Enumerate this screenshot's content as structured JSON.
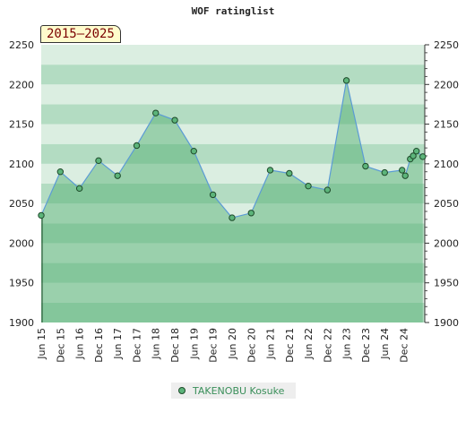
{
  "chart_data": {
    "type": "area",
    "title": "WOF ratinglist",
    "range_label": "2015–2025",
    "ylim": [
      1900,
      2250
    ],
    "yticks": [
      1900,
      1950,
      2000,
      2050,
      2100,
      2150,
      2200,
      2250
    ],
    "xlim": [
      "2015-06-01",
      "2025-06-20"
    ],
    "x_tick_labels": [
      {
        "label": "Jun 15",
        "date": "2015-06-01"
      },
      {
        "label": "Dec 15",
        "date": "2015-12-01"
      },
      {
        "label": "Jun 16",
        "date": "2016-06-01"
      },
      {
        "label": "Dec 16",
        "date": "2016-12-01"
      },
      {
        "label": "Jun 17",
        "date": "2017-06-01"
      },
      {
        "label": "Dec 17",
        "date": "2017-12-01"
      },
      {
        "label": "Jun 18",
        "date": "2018-06-01"
      },
      {
        "label": "Dec 18",
        "date": "2018-12-01"
      },
      {
        "label": "Jun 19",
        "date": "2019-06-01"
      },
      {
        "label": "Dec 19",
        "date": "2019-12-01"
      },
      {
        "label": "Jun 20",
        "date": "2020-06-01"
      },
      {
        "label": "Dec 20",
        "date": "2020-12-01"
      },
      {
        "label": "Jun 21",
        "date": "2021-06-01"
      },
      {
        "label": "Dec 21",
        "date": "2021-12-01"
      },
      {
        "label": "Jun 22",
        "date": "2022-06-01"
      },
      {
        "label": "Dec 22",
        "date": "2022-12-01"
      },
      {
        "label": "Jun 23",
        "date": "2023-06-01"
      },
      {
        "label": "Dec 23",
        "date": "2023-12-01"
      },
      {
        "label": "Jun 24",
        "date": "2024-06-01"
      },
      {
        "label": "Dec 24",
        "date": "2024-12-01"
      }
    ],
    "series": [
      {
        "name": "TAKENOBU Kosuke",
        "color": "#5cb47a",
        "points": [
          {
            "x": "2015-06-01",
            "y": 2035
          },
          {
            "x": "2015-12-01",
            "y": 2090
          },
          {
            "x": "2016-06-01",
            "y": 2069
          },
          {
            "x": "2016-12-01",
            "y": 2104
          },
          {
            "x": "2017-06-01",
            "y": 2085
          },
          {
            "x": "2017-12-01",
            "y": 2123
          },
          {
            "x": "2018-06-01",
            "y": 2164
          },
          {
            "x": "2018-12-01",
            "y": 2155
          },
          {
            "x": "2019-06-01",
            "y": 2116
          },
          {
            "x": "2019-12-01",
            "y": 2061
          },
          {
            "x": "2020-06-01",
            "y": 2032
          },
          {
            "x": "2020-12-01",
            "y": 2038
          },
          {
            "x": "2021-06-01",
            "y": 2092
          },
          {
            "x": "2021-12-01",
            "y": 2088
          },
          {
            "x": "2022-06-01",
            "y": 2072
          },
          {
            "x": "2022-12-01",
            "y": 2067
          },
          {
            "x": "2023-06-01",
            "y": 2205
          },
          {
            "x": "2023-12-01",
            "y": 2097
          },
          {
            "x": "2024-06-01",
            "y": 2089
          },
          {
            "x": "2024-11-15",
            "y": 2092
          },
          {
            "x": "2024-12-15",
            "y": 2085
          },
          {
            "x": "2025-02-01",
            "y": 2106
          },
          {
            "x": "2025-03-01",
            "y": 2110
          },
          {
            "x": "2025-04-01",
            "y": 2116
          },
          {
            "x": "2025-06-01",
            "y": 2109
          }
        ]
      }
    ],
    "grid": true,
    "legend_position": "bottom-center"
  },
  "colors": {
    "band_dark": "#b3dcc2",
    "band_light": "#dbeee1",
    "area_fill": "#4caa6d",
    "line": "#5b9bd5",
    "marker_stroke": "#1e4a2a",
    "badge_text": "#7a0000"
  }
}
